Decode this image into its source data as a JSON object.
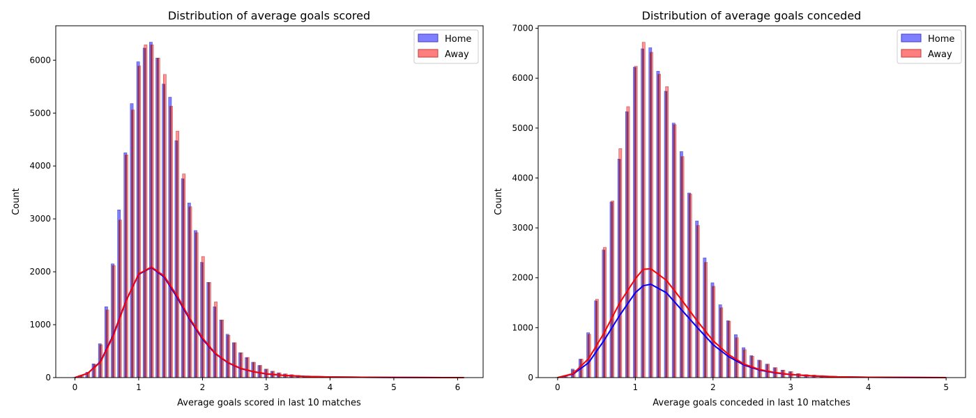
{
  "charts": [
    {
      "title": "Distribution of average goals scored",
      "xlabel": "Average goals scored in last 10 matches",
      "ylabel": "Count",
      "xlim": [
        -0.3,
        6.4
      ],
      "ylim": [
        0,
        6650
      ],
      "xticks": [
        0,
        1,
        2,
        3,
        4,
        5,
        6
      ],
      "yticks": [
        0,
        1000,
        2000,
        3000,
        4000,
        5000,
        6000
      ],
      "legend": {
        "position": "top-right",
        "items": [
          "Home",
          "Away"
        ]
      }
    },
    {
      "title": "Distribution of average goals conceded",
      "xlabel": "Average goals conceded in last 10 matches",
      "ylabel": "Count",
      "xlim": [
        -0.25,
        5.25
      ],
      "ylim": [
        0,
        7050
      ],
      "xticks": [
        0,
        1,
        2,
        3,
        4,
        5
      ],
      "yticks": [
        0,
        1000,
        2000,
        3000,
        4000,
        5000,
        6000,
        7000
      ],
      "legend": {
        "position": "top-right",
        "items": [
          "Home",
          "Away"
        ]
      }
    }
  ],
  "colors": {
    "home_bar": "#7f7fff",
    "home_edge": "#3f3fbf",
    "home_line": "#0000ff",
    "away_bar": "#ff7f7f",
    "away_edge": "#bf3f3f",
    "away_line": "#ff0000",
    "overlap": "#7f2f5f"
  },
  "chart_data": [
    {
      "type": "bar",
      "subtype": "histogram with kde",
      "title": "Distribution of average goals scored",
      "xlabel": "Average goals scored in last 10 matches",
      "ylabel": "Count",
      "xlim": [
        -0.3,
        6.4
      ],
      "ylim": [
        0,
        6650
      ],
      "legend_position": "top-right",
      "series": [
        {
          "name": "Home",
          "x": [
            0.0,
            0.1,
            0.2,
            0.3,
            0.4,
            0.5,
            0.6,
            0.7,
            0.8,
            0.9,
            1.0,
            1.1,
            1.2,
            1.3,
            1.4,
            1.5,
            1.6,
            1.7,
            1.8,
            1.9,
            2.0,
            2.1,
            2.2,
            2.3,
            2.4,
            2.5,
            2.6,
            2.7,
            2.8,
            2.9,
            3.0,
            3.1,
            3.2,
            3.3,
            3.4,
            3.5,
            3.6,
            3.7,
            3.8,
            3.9,
            4.0
          ],
          "values": [
            5,
            40,
            100,
            260,
            640,
            1340,
            2150,
            3170,
            4250,
            5180,
            5970,
            6230,
            6340,
            6040,
            5550,
            5300,
            4480,
            3760,
            3300,
            2780,
            2180,
            1800,
            1340,
            1090,
            820,
            660,
            470,
            380,
            290,
            230,
            160,
            120,
            90,
            70,
            55,
            40,
            30,
            20,
            15,
            10,
            8
          ],
          "kde_x": [
            0.0,
            0.2,
            0.4,
            0.6,
            0.8,
            1.0,
            1.2,
            1.4,
            1.6,
            1.8,
            2.0,
            2.2,
            2.4,
            2.6,
            2.8,
            3.0,
            3.3,
            3.6,
            4.0,
            4.5,
            5.0,
            5.5,
            6.1
          ],
          "kde_y": [
            0,
            80,
            300,
            800,
            1450,
            1950,
            2080,
            1900,
            1520,
            1100,
            730,
            450,
            280,
            170,
            110,
            70,
            40,
            22,
            12,
            6,
            3,
            1,
            0
          ]
        },
        {
          "name": "Away",
          "x": [
            0.0,
            0.1,
            0.2,
            0.3,
            0.4,
            0.5,
            0.6,
            0.7,
            0.8,
            0.9,
            1.0,
            1.1,
            1.2,
            1.3,
            1.4,
            1.5,
            1.6,
            1.7,
            1.8,
            1.9,
            2.0,
            2.1,
            2.2,
            2.3,
            2.4,
            2.5,
            2.6,
            2.7,
            2.8,
            2.9,
            3.0,
            3.1,
            3.2,
            3.3,
            3.4,
            3.5,
            3.6,
            3.7,
            3.8,
            3.9,
            4.0
          ],
          "values": [
            5,
            40,
            100,
            250,
            620,
            1280,
            2120,
            2980,
            4210,
            5060,
            5890,
            6290,
            6290,
            6040,
            5730,
            5130,
            4660,
            3850,
            3230,
            2740,
            2290,
            1800,
            1430,
            1090,
            800,
            660,
            470,
            380,
            290,
            230,
            160,
            120,
            90,
            70,
            55,
            40,
            30,
            20,
            15,
            10,
            8
          ],
          "kde_x": [
            0.0,
            0.2,
            0.4,
            0.6,
            0.8,
            1.0,
            1.2,
            1.4,
            1.6,
            1.8,
            2.0,
            2.2,
            2.4,
            2.6,
            2.8,
            3.0,
            3.3,
            3.6,
            4.0,
            4.5,
            5.0,
            5.5,
            6.1
          ],
          "kde_y": [
            0,
            80,
            290,
            780,
            1440,
            1960,
            2090,
            1920,
            1550,
            1120,
            750,
            460,
            285,
            175,
            112,
            72,
            40,
            22,
            12,
            6,
            3,
            1,
            0
          ]
        }
      ]
    },
    {
      "type": "bar",
      "subtype": "histogram with kde",
      "title": "Distribution of average goals conceded",
      "xlabel": "Average goals conceded in last 10 matches",
      "ylabel": "Count",
      "xlim": [
        -0.25,
        5.25
      ],
      "ylim": [
        0,
        7050
      ],
      "legend_position": "top-right",
      "series": [
        {
          "name": "Home",
          "x": [
            0.0,
            0.1,
            0.2,
            0.3,
            0.4,
            0.5,
            0.6,
            0.7,
            0.8,
            0.9,
            1.0,
            1.1,
            1.2,
            1.3,
            1.4,
            1.5,
            1.6,
            1.7,
            1.8,
            1.9,
            2.0,
            2.1,
            2.2,
            2.3,
            2.4,
            2.5,
            2.6,
            2.7,
            2.8,
            2.9,
            3.0,
            3.1,
            3.2,
            3.3,
            3.4,
            3.5,
            3.6,
            3.7,
            3.8,
            3.9,
            4.0
          ],
          "values": [
            5,
            40,
            170,
            370,
            900,
            1540,
            2560,
            3520,
            4380,
            5330,
            6220,
            6590,
            6610,
            6140,
            5740,
            5100,
            4530,
            3700,
            3140,
            2400,
            1900,
            1460,
            1140,
            860,
            600,
            440,
            350,
            270,
            200,
            150,
            120,
            80,
            60,
            50,
            40,
            30,
            20,
            15,
            10,
            8,
            5
          ],
          "kde_x": [
            0.0,
            0.2,
            0.4,
            0.6,
            0.8,
            1.0,
            1.1,
            1.2,
            1.4,
            1.6,
            1.8,
            2.0,
            2.2,
            2.4,
            2.6,
            2.8,
            3.0,
            3.3,
            3.6,
            4.0,
            4.5,
            5.0
          ],
          "kde_y": [
            0,
            70,
            300,
            750,
            1250,
            1700,
            1840,
            1870,
            1700,
            1350,
            1000,
            660,
            420,
            250,
            150,
            95,
            60,
            32,
            16,
            7,
            3,
            0
          ]
        },
        {
          "name": "Away",
          "x": [
            0.0,
            0.1,
            0.2,
            0.3,
            0.4,
            0.5,
            0.6,
            0.7,
            0.8,
            0.9,
            1.0,
            1.1,
            1.2,
            1.3,
            1.4,
            1.5,
            1.6,
            1.7,
            1.8,
            1.9,
            2.0,
            2.1,
            2.2,
            2.3,
            2.4,
            2.5,
            2.6,
            2.7,
            2.8,
            2.9,
            3.0,
            3.1,
            3.2,
            3.3,
            3.4,
            3.5,
            3.6,
            3.7,
            3.8,
            3.9,
            4.0
          ],
          "values": [
            5,
            40,
            150,
            370,
            870,
            1570,
            2610,
            3540,
            4590,
            5430,
            6240,
            6720,
            6520,
            6080,
            5830,
            5070,
            4430,
            3680,
            3050,
            2310,
            1830,
            1400,
            1130,
            800,
            560,
            430,
            340,
            270,
            200,
            150,
            120,
            80,
            60,
            50,
            40,
            30,
            20,
            15,
            10,
            8,
            5
          ],
          "kde_x": [
            0.0,
            0.2,
            0.4,
            0.6,
            0.8,
            1.0,
            1.1,
            1.2,
            1.4,
            1.6,
            1.8,
            2.0,
            2.2,
            2.4,
            2.6,
            2.8,
            3.0,
            3.3,
            3.6,
            4.0,
            4.5,
            5.0
          ],
          "kde_y": [
            0,
            80,
            380,
            900,
            1500,
            1980,
            2170,
            2180,
            1950,
            1550,
            1130,
            740,
            460,
            270,
            160,
            100,
            62,
            33,
            16,
            7,
            3,
            0
          ]
        }
      ]
    }
  ]
}
